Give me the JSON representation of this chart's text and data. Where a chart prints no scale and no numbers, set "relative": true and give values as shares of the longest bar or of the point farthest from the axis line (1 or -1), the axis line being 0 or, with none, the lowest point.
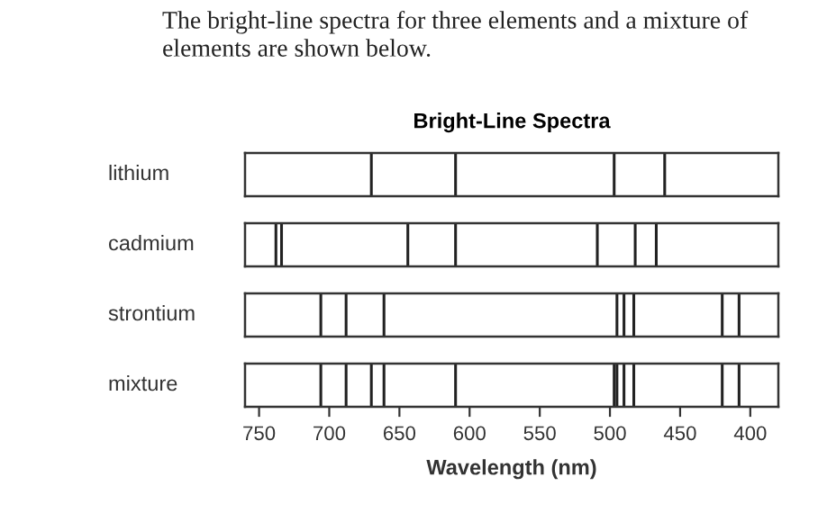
{
  "chart_data": [
    {
      "type": "bar",
      "relative": true,
      "color": "#222222",
      "title": "Bright-Line Spectra",
      "annotations": [
        "The bright-line spectra for three elements and a mixture of elements are shown below."
      ],
      "ylabel": "lithium",
      "xlim": [
        760,
        380
      ],
      "tick_labels": false,
      "x": [
        670,
        610,
        497,
        461
      ],
      "values": [
        1,
        1,
        1,
        1
      ]
    },
    {
      "type": "bar",
      "relative": true,
      "color": "#222222",
      "ylabel": "cadmium",
      "xlim": [
        760,
        380
      ],
      "tick_labels": false,
      "x": [
        738,
        734,
        644,
        610,
        509,
        482,
        467
      ],
      "values": [
        1,
        1,
        1,
        1,
        1,
        1,
        1
      ]
    },
    {
      "type": "bar",
      "relative": true,
      "color": "#222222",
      "ylabel": "strontium",
      "xlim": [
        760,
        380
      ],
      "tick_labels": false,
      "x": [
        706,
        688,
        661,
        495,
        490,
        483,
        420,
        408
      ],
      "values": [
        1,
        1,
        1,
        1,
        1,
        1,
        1,
        1
      ]
    },
    {
      "type": "bar",
      "relative": true,
      "color": "#222222",
      "ylabel": "mixture",
      "xlabel": "Wavelength (nm)",
      "xlim": [
        760,
        380
      ],
      "xticks": [
        750,
        700,
        650,
        600,
        550,
        500,
        450,
        400
      ],
      "tick_labels": "x",
      "x": [
        706,
        688,
        670,
        661,
        610,
        497,
        495,
        490,
        483,
        420,
        408
      ],
      "values": [
        1,
        1,
        1,
        1,
        1,
        1,
        1,
        1,
        1,
        1,
        1
      ]
    }
  ]
}
